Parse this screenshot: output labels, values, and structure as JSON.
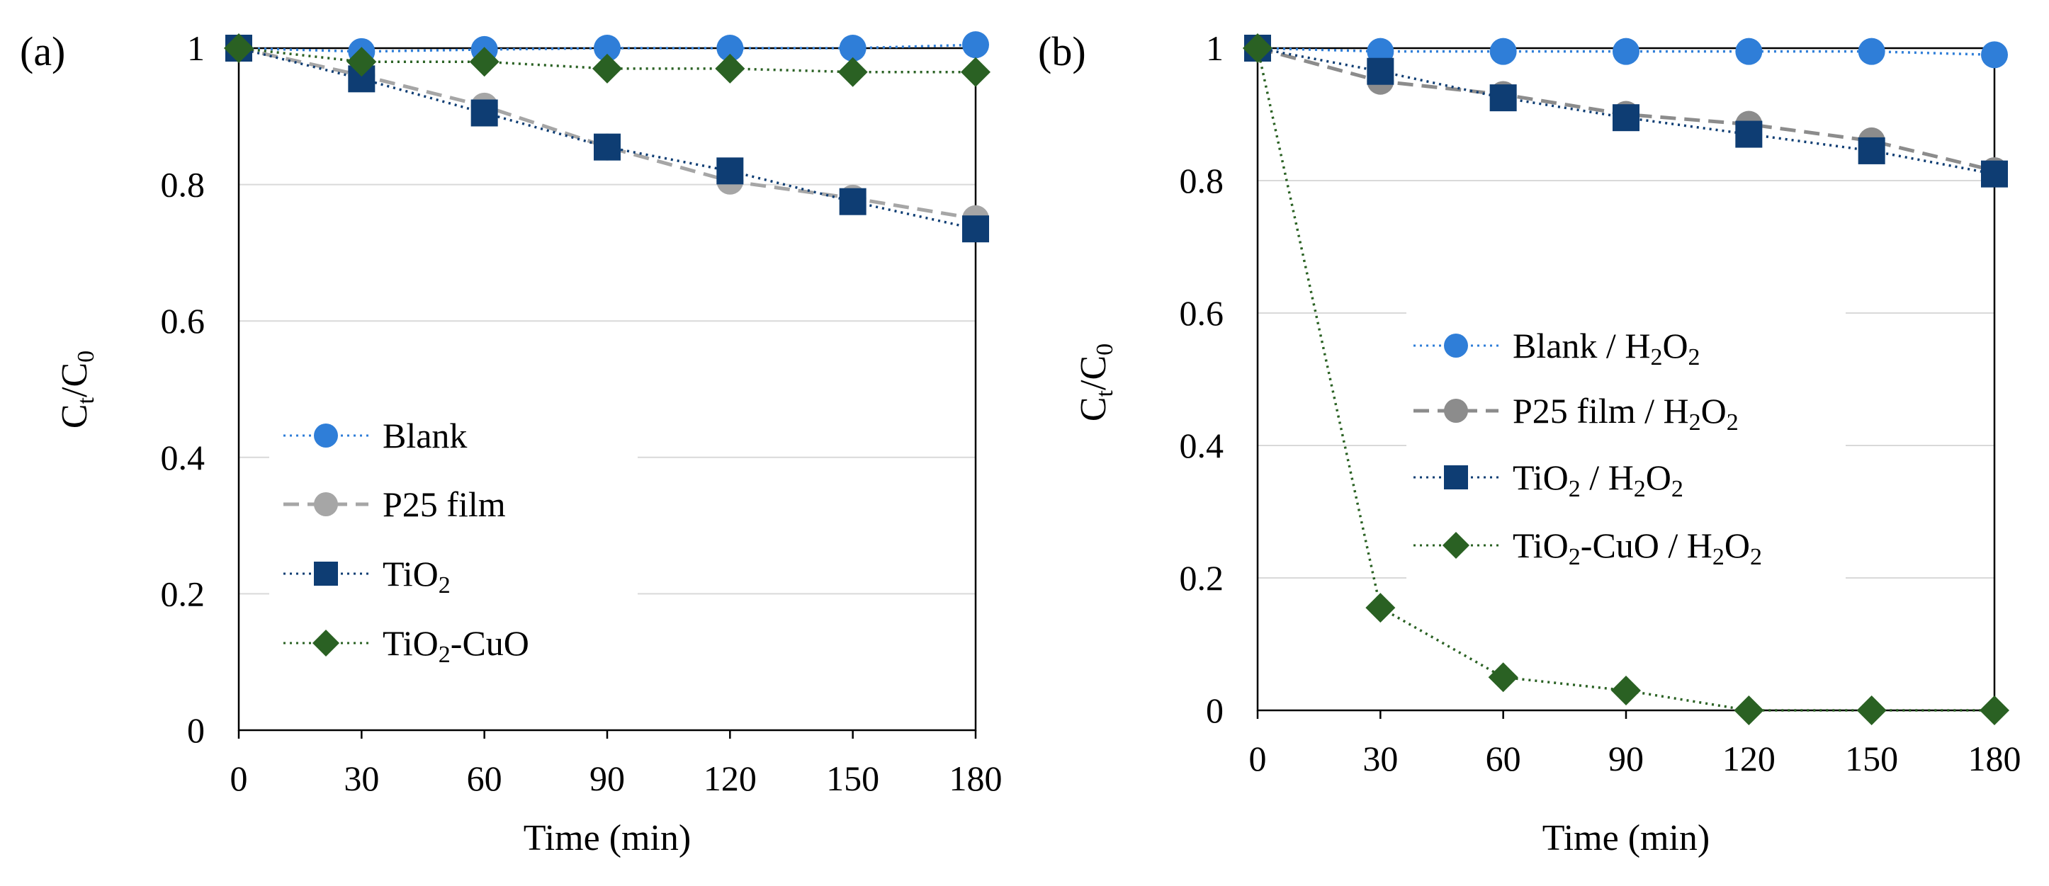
{
  "chart_data": [
    {
      "type": "line",
      "panel": "(a)",
      "xlabel": "Time (min)",
      "ylabel": "Ct/C0",
      "ylabel_main": "C",
      "ylabel_sub1": "t",
      "ylabel_slash": "/C",
      "ylabel_sub2": "0",
      "x": [
        0,
        30,
        60,
        90,
        120,
        150,
        180
      ],
      "xlim": [
        0,
        180
      ],
      "ylim": [
        0,
        1
      ],
      "xticks": [
        "0",
        "30",
        "60",
        "90",
        "120",
        "150",
        "180"
      ],
      "yticks": [
        "0",
        "0.2",
        "0.4",
        "0.6",
        "0.8",
        "1"
      ],
      "grid": true,
      "legend_position": "lower-left",
      "series": [
        {
          "name": "Blank",
          "label_main": "Blank",
          "label_sub": "",
          "label_rest": "",
          "marker": "circle",
          "line": "dotted",
          "color": "#2f7ed8",
          "values": [
            1.0,
            0.995,
            0.998,
            1.0,
            1.0,
            1.0,
            1.005
          ]
        },
        {
          "name": "P25 film",
          "label_main": "P25 film",
          "label_sub": "",
          "label_rest": "",
          "marker": "circle",
          "line": "dashed",
          "color": "#a6a6a6",
          "values": [
            1.0,
            0.96,
            0.915,
            0.855,
            0.805,
            0.78,
            0.75
          ]
        },
        {
          "name": "TiO2",
          "label_main": "TiO",
          "label_sub": "2",
          "label_rest": "",
          "marker": "square",
          "line": "dotted",
          "color": "#0e3d73",
          "values": [
            1.0,
            0.955,
            0.905,
            0.855,
            0.82,
            0.775,
            0.735
          ]
        },
        {
          "name": "TiO2-CuO",
          "label_main": "TiO",
          "label_sub": "2",
          "label_rest": "-CuO",
          "marker": "diamond",
          "line": "dotted",
          "color": "#2a6123",
          "values": [
            1.0,
            0.98,
            0.98,
            0.97,
            0.97,
            0.965,
            0.965
          ]
        }
      ]
    },
    {
      "type": "line",
      "panel": "(b)",
      "xlabel": "Time (min)",
      "ylabel": "Ct/C0",
      "ylabel_main": "C",
      "ylabel_sub1": "t",
      "ylabel_slash": "/C",
      "ylabel_sub2": "0",
      "x": [
        0,
        30,
        60,
        90,
        120,
        150,
        180
      ],
      "xlim": [
        0,
        180
      ],
      "ylim": [
        0,
        1
      ],
      "xticks": [
        "0",
        "30",
        "60",
        "90",
        "120",
        "150",
        "180"
      ],
      "yticks": [
        "0",
        "0.2",
        "0.4",
        "0.6",
        "0.8",
        "1"
      ],
      "grid": true,
      "legend_position": "center",
      "series": [
        {
          "name": "Blank / H2O2",
          "label_main": "Blank / H",
          "label_sub": "2",
          "label_rest": "O",
          "label_sub2": "2",
          "marker": "circle",
          "line": "dotted",
          "color": "#2f7ed8",
          "values": [
            1.0,
            0.995,
            0.995,
            0.995,
            0.995,
            0.995,
            0.99
          ]
        },
        {
          "name": "P25 film / H2O2",
          "label_main": "P25 film / H",
          "label_sub": "2",
          "label_rest": "O",
          "label_sub2": "2",
          "marker": "circle",
          "line": "dashed",
          "color": "#8c8c8c",
          "values": [
            1.0,
            0.95,
            0.93,
            0.9,
            0.885,
            0.86,
            0.815
          ]
        },
        {
          "name": "TiO2 / H2O2",
          "label_main": "TiO",
          "label_sub": "2",
          "label_rest": " / H",
          "label_sub2": "2",
          "label_rest2": "O",
          "label_sub3": "2",
          "marker": "square",
          "line": "dotted",
          "color": "#0e3d73",
          "values": [
            1.0,
            0.965,
            0.925,
            0.895,
            0.87,
            0.845,
            0.81
          ]
        },
        {
          "name": "TiO2-CuO / H2O2",
          "label_main": "TiO",
          "label_sub": "2",
          "label_rest": "-CuO / H",
          "label_sub2": "2",
          "label_rest2": "O",
          "label_sub3": "2",
          "marker": "diamond",
          "line": "dotted",
          "color": "#2a6123",
          "values": [
            1.0,
            0.155,
            0.05,
            0.03,
            0.0,
            0.0,
            0.0
          ]
        }
      ]
    }
  ]
}
